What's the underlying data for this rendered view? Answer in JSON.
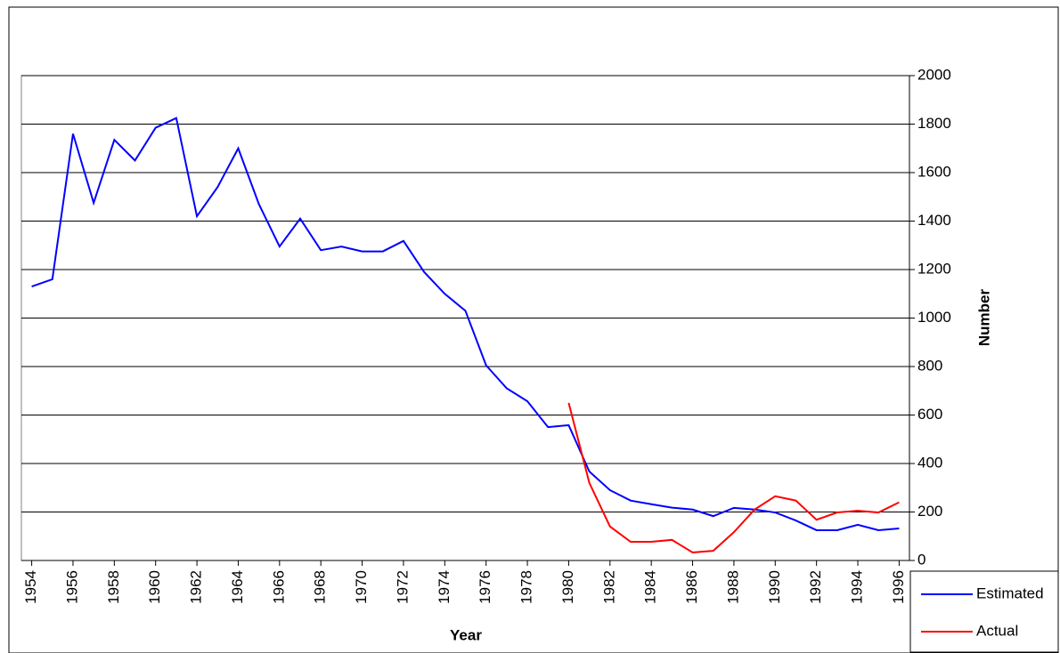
{
  "chart_data": {
    "type": "line",
    "x_label": "Year",
    "y_label": "Number",
    "x": [
      1954,
      1955,
      1956,
      1957,
      1958,
      1959,
      1960,
      1961,
      1962,
      1963,
      1964,
      1965,
      1966,
      1967,
      1968,
      1969,
      1970,
      1971,
      1972,
      1973,
      1974,
      1975,
      1976,
      1977,
      1978,
      1979,
      1980,
      1981,
      1982,
      1983,
      1984,
      1985,
      1986,
      1987,
      1988,
      1989,
      1990,
      1991,
      1992,
      1993,
      1994,
      1995,
      1996
    ],
    "series": [
      {
        "name": "Estimated",
        "color": "#0000ff",
        "values": [
          1130,
          1160,
          1760,
          1475,
          1735,
          1650,
          1785,
          1825,
          1420,
          1540,
          1700,
          1470,
          1295,
          1410,
          1280,
          1295,
          1275,
          1275,
          1318,
          1190,
          1100,
          1030,
          805,
          710,
          657,
          550,
          558,
          367,
          290,
          247,
          232,
          218,
          210,
          183,
          217,
          210,
          198,
          165,
          125,
          125,
          147,
          125,
          132
        ]
      },
      {
        "name": "Actual",
        "color": "#ff0000",
        "values": [
          null,
          null,
          null,
          null,
          null,
          null,
          null,
          null,
          null,
          null,
          null,
          null,
          null,
          null,
          null,
          null,
          null,
          null,
          null,
          null,
          null,
          null,
          null,
          null,
          null,
          null,
          650,
          320,
          140,
          77,
          77,
          85,
          33,
          40,
          117,
          210,
          265,
          247,
          168,
          198,
          205,
          198,
          240
        ]
      }
    ],
    "xlim": [
      1953.5,
      1996.5
    ],
    "xticks": [
      1954,
      1956,
      1958,
      1960,
      1962,
      1964,
      1966,
      1968,
      1970,
      1972,
      1974,
      1976,
      1978,
      1980,
      1982,
      1984,
      1986,
      1988,
      1990,
      1992,
      1994,
      1996
    ],
    "ylim": [
      0,
      2000
    ],
    "yticks": [
      0,
      200,
      400,
      600,
      800,
      1000,
      1200,
      1400,
      1600,
      1800,
      2000
    ],
    "grid": true,
    "legend": "bottom-right"
  }
}
